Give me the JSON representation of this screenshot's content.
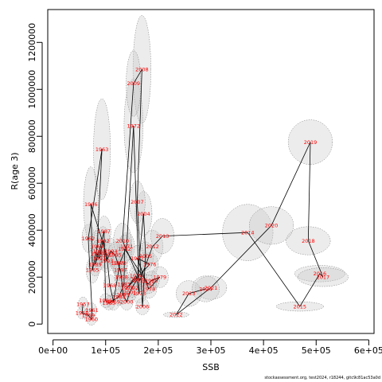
{
  "chart_data": {
    "type": "scatter",
    "title": "",
    "xlabel": "SSB",
    "ylabel": "R(age 3)",
    "xlim": [
      -10000,
      610000
    ],
    "ylim": [
      -40000,
      1340000
    ],
    "x_ticks": [
      0,
      100000,
      200000,
      300000,
      400000,
      500000,
      600000
    ],
    "x_tick_labels": [
      "0e+00",
      "1e+05",
      "2e+05",
      "3e+05",
      "4e+05",
      "5e+05",
      "6e+05"
    ],
    "y_ticks": [
      0,
      200000,
      400000,
      600000,
      800000,
      1000000,
      1200000
    ],
    "y_tick_labels": [
      "0",
      "200000",
      "400000",
      "600000",
      "800000",
      "1000000",
      "1200000"
    ],
    "grid": false,
    "legend": "none",
    "colors": {
      "line": "#000000",
      "label": "#ff0000",
      "ellipse_fill": "#c8c8c8",
      "ellipse_stroke": "#777777"
    },
    "footer": "stockassessment.org, test2024, r18244, gitc9c81ac53a0d",
    "series": [
      {
        "points": [
          {
            "year": "1957",
            "ssb": 57000,
            "rec": 85000,
            "sd_ssb": 9000,
            "sd_rec": 30000
          },
          {
            "year": "1958",
            "ssb": 55000,
            "rec": 47000,
            "sd_ssb": 9000,
            "sd_rec": 25000
          },
          {
            "year": "1959",
            "ssb": 67000,
            "rec": 38000,
            "sd_ssb": 9000,
            "sd_rec": 25000
          },
          {
            "year": "1960",
            "ssb": 73000,
            "rec": 20000,
            "sd_ssb": 9000,
            "sd_rec": 25000
          },
          {
            "year": "1961",
            "ssb": 74000,
            "rec": 60000,
            "sd_ssb": 9000,
            "sd_rec": 30000
          },
          {
            "year": "1962",
            "ssb": 67000,
            "rec": 365000,
            "sd_ssb": 12000,
            "sd_rec": 60000
          },
          {
            "year": "1963",
            "ssb": 93000,
            "rec": 745000,
            "sd_ssb": 16000,
            "sd_rec": 215000
          },
          {
            "year": "1964",
            "ssb": 84000,
            "rec": 330000,
            "sd_ssb": 13000,
            "sd_rec": 70000
          },
          {
            "year": "1965",
            "ssb": 75000,
            "rec": 230000,
            "sd_ssb": 12000,
            "sd_rec": 55000
          },
          {
            "year": "1966",
            "ssb": 72000,
            "rec": 510000,
            "sd_ssb": 14000,
            "sd_rec": 160000
          },
          {
            "year": "1967",
            "ssb": 102000,
            "rec": 295000,
            "sd_ssb": 13000,
            "sd_rec": 60000
          },
          {
            "year": "1968",
            "ssb": 108000,
            "rec": 165000,
            "sd_ssb": 12000,
            "sd_rec": 45000
          },
          {
            "year": "1969",
            "ssb": 115000,
            "rec": 95000,
            "sd_ssb": 12000,
            "sd_rec": 35000
          },
          {
            "year": "1970",
            "ssb": 127000,
            "rec": 260000,
            "sd_ssb": 15000,
            "sd_rec": 55000
          },
          {
            "year": "1971",
            "ssb": 140000,
            "rec": 330000,
            "sd_ssb": 15000,
            "sd_rec": 60000
          },
          {
            "year": "1972",
            "ssb": 153000,
            "rec": 845000,
            "sd_ssb": 18000,
            "sd_rec": 200000
          },
          {
            "year": "1973",
            "ssb": 164000,
            "rec": 130000,
            "sd_ssb": 14000,
            "sd_rec": 40000
          },
          {
            "year": "1974",
            "ssb": 158000,
            "rec": 205000,
            "sd_ssb": 14000,
            "sd_rec": 45000
          },
          {
            "year": "1975",
            "ssb": 141000,
            "rec": 155000,
            "sd_ssb": 13000,
            "sd_rec": 40000
          },
          {
            "year": "1976",
            "ssb": 184000,
            "rec": 255000,
            "sd_ssb": 16000,
            "sd_rec": 50000
          },
          {
            "year": "1977",
            "ssb": 160000,
            "rec": 280000,
            "sd_ssb": 15000,
            "sd_rec": 55000
          },
          {
            "year": "1978",
            "ssb": 182000,
            "rec": 150000,
            "sd_ssb": 15000,
            "sd_rec": 40000
          },
          {
            "year": "1979",
            "ssb": 203000,
            "rec": 200000,
            "sd_ssb": 16000,
            "sd_rec": 45000
          },
          {
            "year": "1980",
            "ssb": 187000,
            "rec": 185000,
            "sd_ssb": 15000,
            "sd_rec": 40000
          },
          {
            "year": "1981",
            "ssb": 181000,
            "rec": 170000,
            "sd_ssb": 15000,
            "sd_rec": 40000
          },
          {
            "year": "1982",
            "ssb": 136000,
            "rec": 320000,
            "sd_ssb": 14000,
            "sd_rec": 60000
          },
          {
            "year": "1983",
            "ssb": 135000,
            "rec": 170000,
            "sd_ssb": 13000,
            "sd_rec": 40000
          },
          {
            "year": "1984",
            "ssb": 125000,
            "rec": 115000,
            "sd_ssb": 12000,
            "sd_rec": 35000
          },
          {
            "year": "1985",
            "ssb": 106000,
            "rec": 90000,
            "sd_ssb": 11000,
            "sd_rec": 30000
          },
          {
            "year": "1986",
            "ssb": 100000,
            "rec": 100000,
            "sd_ssb": 11000,
            "sd_rec": 30000
          },
          {
            "year": "1987",
            "ssb": 97000,
            "rec": 395000,
            "sd_ssb": 13000,
            "sd_rec": 65000
          },
          {
            "year": "1988",
            "ssb": 88000,
            "rec": 310000,
            "sd_ssb": 13000,
            "sd_rec": 55000
          },
          {
            "year": "1989",
            "ssb": 80000,
            "rec": 255000,
            "sd_ssb": 12000,
            "sd_rec": 50000
          },
          {
            "year": "1990",
            "ssb": 84000,
            "rec": 300000,
            "sd_ssb": 12000,
            "sd_rec": 55000
          },
          {
            "year": "1991",
            "ssb": 88000,
            "rec": 280000,
            "sd_ssb": 12000,
            "sd_rec": 50000
          },
          {
            "year": "1992",
            "ssb": 95000,
            "rec": 355000,
            "sd_ssb": 13000,
            "sd_rec": 60000
          },
          {
            "year": "1993",
            "ssb": 102000,
            "rec": 270000,
            "sd_ssb": 13000,
            "sd_rec": 50000
          },
          {
            "year": "1994",
            "ssb": 110000,
            "rec": 310000,
            "sd_ssb": 13000,
            "sd_rec": 55000
          },
          {
            "year": "1995",
            "ssb": 118000,
            "rec": 295000,
            "sd_ssb": 13000,
            "sd_rec": 55000
          },
          {
            "year": "1996",
            "ssb": 123000,
            "rec": 260000,
            "sd_ssb": 13000,
            "sd_rec": 50000
          },
          {
            "year": "1997",
            "ssb": 128000,
            "rec": 230000,
            "sd_ssb": 13000,
            "sd_rec": 45000
          },
          {
            "year": "1998",
            "ssb": 130000,
            "rec": 200000,
            "sd_ssb": 13000,
            "sd_rec": 45000
          },
          {
            "year": "1999",
            "ssb": 133000,
            "rec": 125000,
            "sd_ssb": 13000,
            "sd_rec": 40000
          },
          {
            "year": "2000",
            "ssb": 140000,
            "rec": 95000,
            "sd_ssb": 12000,
            "sd_rec": 35000
          },
          {
            "year": "2001",
            "ssb": 146000,
            "rec": 135000,
            "sd_ssb": 13000,
            "sd_rec": 40000
          },
          {
            "year": "2002",
            "ssb": 150000,
            "rec": 155000,
            "sd_ssb": 13000,
            "sd_rec": 40000
          },
          {
            "year": "2003",
            "ssb": 160000,
            "rec": 190000,
            "sd_ssb": 14000,
            "sd_rec": 45000
          },
          {
            "year": "2004",
            "ssb": 172000,
            "rec": 470000,
            "sd_ssb": 16000,
            "sd_rec": 95000
          },
          {
            "year": "2005",
            "ssb": 176000,
            "rec": 290000,
            "sd_ssb": 15000,
            "sd_rec": 60000
          },
          {
            "year": "2006",
            "ssb": 170000,
            "rec": 75000,
            "sd_ssb": 13000,
            "sd_rec": 35000
          },
          {
            "year": "2007",
            "ssb": 160000,
            "rec": 520000,
            "sd_ssb": 15000,
            "sd_rec": 90000
          },
          {
            "year": "2008",
            "ssb": 169000,
            "rec": 1085000,
            "sd_ssb": 17000,
            "sd_rec": 230000
          },
          {
            "year": "2009",
            "ssb": 153000,
            "rec": 1025000,
            "sd_ssb": 14000,
            "sd_rec": 140000
          },
          {
            "year": "2010",
            "ssb": 132000,
            "rec": 355000,
            "sd_ssb": 17000,
            "sd_rec": 75000
          },
          {
            "year": "2011",
            "ssb": 165000,
            "rec": 185000,
            "sd_ssb": 14000,
            "sd_rec": 45000
          },
          {
            "year": "2012",
            "ssb": 189000,
            "rec": 330000,
            "sd_ssb": 20000,
            "sd_rec": 70000
          },
          {
            "year": "2013",
            "ssb": 208000,
            "rec": 375000,
            "sd_ssb": 22000,
            "sd_rec": 75000
          },
          {
            "year": "2014",
            "ssb": 370000,
            "rec": 390000,
            "sd_ssb": 48000,
            "sd_rec": 120000
          },
          {
            "year": "2015",
            "ssb": 469000,
            "rec": 75000,
            "sd_ssb": 45000,
            "sd_rec": 20000
          },
          {
            "year": "2016",
            "ssb": 507000,
            "rec": 215000,
            "sd_ssb": 48000,
            "sd_rec": 35000
          },
          {
            "year": "2017",
            "ssb": 513000,
            "rec": 200000,
            "sd_ssb": 48000,
            "sd_rec": 40000
          },
          {
            "year": "2018",
            "ssb": 485000,
            "rec": 355000,
            "sd_ssb": 42000,
            "sd_rec": 60000
          },
          {
            "year": "2019",
            "ssb": 489000,
            "rec": 775000,
            "sd_ssb": 42000,
            "sd_rec": 95000
          },
          {
            "year": "2020",
            "ssb": 415000,
            "rec": 420000,
            "sd_ssb": 42000,
            "sd_rec": 80000
          },
          {
            "year": "2021",
            "ssb": 300000,
            "rec": 155000,
            "sd_ssb": 30000,
            "sd_rec": 50000
          },
          {
            "year": "2022",
            "ssb": 234000,
            "rec": 40000,
            "sd_ssb": 24000,
            "sd_rec": 12000
          },
          {
            "year": "2023",
            "ssb": 258000,
            "rec": 130000,
            "sd_ssb": 24000,
            "sd_rec": 55000
          },
          {
            "year": "2024",
            "ssb": 290000,
            "rec": 150000,
            "sd_ssb": 26000,
            "sd_rec": 55000
          }
        ]
      }
    ]
  }
}
